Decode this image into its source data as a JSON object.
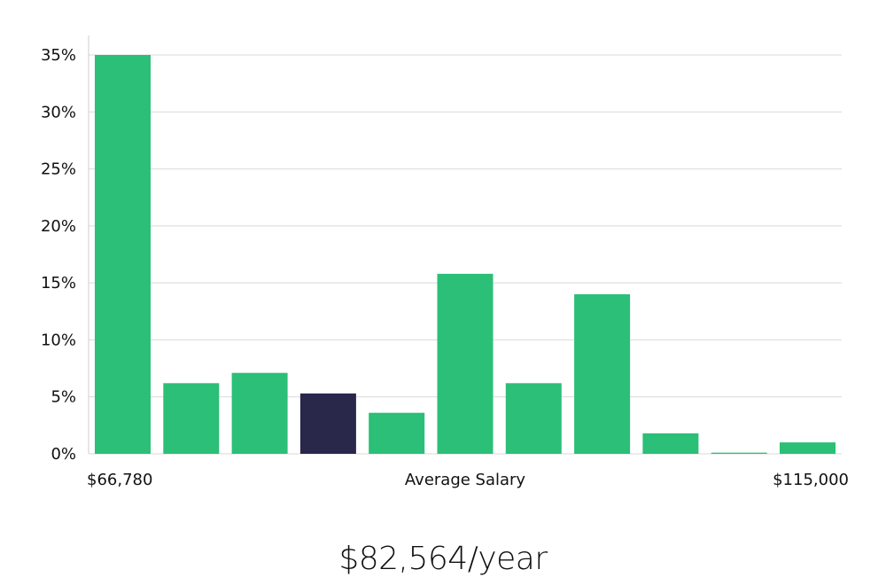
{
  "chart_data": {
    "type": "bar",
    "title": "",
    "xlabel": "Average Salary",
    "ylabel": "",
    "x_start_label": "$66,780",
    "x_end_label": "$115,000",
    "categories": [
      "",
      "",
      "",
      "",
      "",
      "",
      "",
      "",
      "",
      "",
      ""
    ],
    "values": [
      35.0,
      6.2,
      7.1,
      5.3,
      3.6,
      15.8,
      6.2,
      14.0,
      1.8,
      0.1,
      1.0
    ],
    "highlight_index": 3,
    "ylim": [
      0,
      35
    ],
    "y_ticks": [
      0,
      5,
      10,
      15,
      20,
      25,
      30,
      35
    ],
    "y_tick_suffix": "%",
    "grid": true,
    "colors": {
      "bar": "#2bbf77",
      "highlight": "#29274a",
      "grid": "#d9d9d9",
      "axis": "#cccccc"
    }
  },
  "summary": {
    "salary_text": "$82,564/year"
  }
}
